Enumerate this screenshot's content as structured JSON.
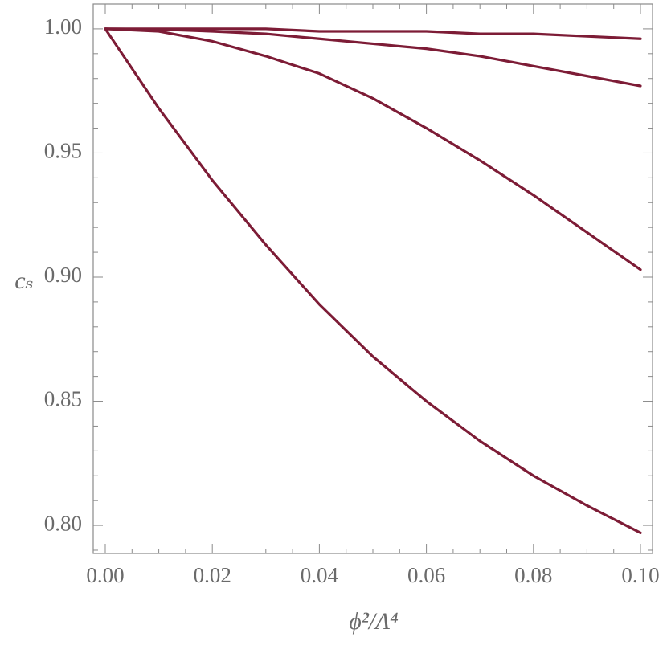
{
  "chart_data": {
    "type": "line",
    "x_label": "ϕ̇²/Λ⁴",
    "y_label": "cₛ",
    "x": [
      0,
      0.01,
      0.02,
      0.03,
      0.04,
      0.05,
      0.06,
      0.07,
      0.08,
      0.09,
      0.1
    ],
    "series": [
      {
        "color": "#7d1c36",
        "values": [
          1,
          0.968,
          0.939,
          0.913,
          0.889,
          0.868,
          0.85,
          0.834,
          0.82,
          0.808,
          0.797
        ]
      },
      {
        "color": "#7d1c36",
        "values": [
          1,
          0.999,
          0.995,
          0.989,
          0.982,
          0.972,
          0.96,
          0.947,
          0.933,
          0.918,
          0.903
        ]
      },
      {
        "color": "#7d1c36",
        "values": [
          1,
          0.9998,
          0.999,
          0.998,
          0.996,
          0.994,
          0.992,
          0.989,
          0.985,
          0.981,
          0.977
        ]
      },
      {
        "color": "#7d1c36",
        "values": [
          1,
          1,
          1,
          1,
          0.999,
          0.999,
          0.999,
          0.998,
          0.998,
          0.997,
          0.996
        ]
      }
    ],
    "xlim": [
      -0.00225,
      0.10225
    ],
    "ylim": [
      0.7887,
      1.01
    ],
    "xticks": [
      {
        "value": 0,
        "label": "0.00"
      },
      {
        "value": 0.02,
        "label": "0.02"
      },
      {
        "value": 0.04,
        "label": "0.04"
      },
      {
        "value": 0.06,
        "label": "0.06"
      },
      {
        "value": 0.08,
        "label": "0.08"
      },
      {
        "value": 0.1,
        "label": "0.10"
      }
    ],
    "yticks": [
      {
        "value": 0.8,
        "label": "0.80"
      },
      {
        "value": 0.85,
        "label": "0.85"
      },
      {
        "value": 0.9,
        "label": "0.90"
      },
      {
        "value": 0.95,
        "label": "0.95"
      },
      {
        "value": 1,
        "label": "1.00"
      }
    ],
    "xminorticks": [
      0.005,
      0.01,
      0.015,
      0.025,
      0.03,
      0.035,
      0.045,
      0.05,
      0.055,
      0.065,
      0.07,
      0.075,
      0.085,
      0.09,
      0.095
    ],
    "yminorticks": [
      0.79,
      0.81,
      0.82,
      0.83,
      0.84,
      0.86,
      0.87,
      0.88,
      0.89,
      0.91,
      0.92,
      0.93,
      0.94,
      0.96,
      0.97,
      0.98,
      0.99,
      1.01
    ]
  }
}
